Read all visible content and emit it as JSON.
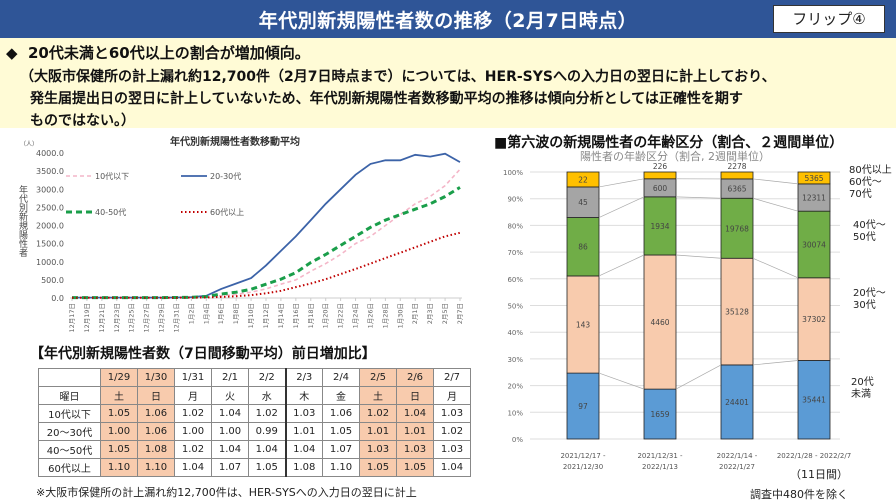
{
  "header": {
    "title": "年代別新規陽性者数の推移（2月7日時点）",
    "flip_label": "フリップ④",
    "bg_color": "#2f5597"
  },
  "note": {
    "bullet": "◆",
    "line1": "20代未満と60代以上の割合が増加傾向。",
    "line2": "（大阪市保健所の計上漏れ約12,700件（2月7日時点まで）については、HER-SYSへの入力日の翌日に計上しており、",
    "line3": "発生届提出日の翌日に計上していないため、年代別新規陽性者数移動平均の推移は傾向分析としては正確性を期す",
    "line4": "ものではない。）"
  },
  "chart_data": [
    {
      "type": "line",
      "title": "年代別新規陽性者数移動平均",
      "ylabel": "年代別新規陽性者",
      "yunit": "（人）",
      "ylim": [
        0,
        4000
      ],
      "yticks": [
        "0.0",
        "500.0",
        "1000.0",
        "1500.0",
        "2000.0",
        "2500.0",
        "3000.0",
        "3500.0",
        "4000.0"
      ],
      "x": [
        "12月17日",
        "12月19日",
        "12月21日",
        "12月23日",
        "12月25日",
        "12月27日",
        "12月29日",
        "12月31日",
        "1月2日",
        "1月4日",
        "1月6日",
        "1月8日",
        "1月10日",
        "1月12日",
        "1月14日",
        "1月16日",
        "1月18日",
        "1月20日",
        "1月22日",
        "1月24日",
        "1月26日",
        "1月28日",
        "1月30日",
        "2月1日",
        "2月3日",
        "2月5日",
        "2月7日"
      ],
      "legend": "top-left",
      "series": [
        {
          "name": "10代以下",
          "color": "#f4b6c8",
          "style": "dashed",
          "values": [
            10,
            10,
            10,
            10,
            10,
            10,
            12,
            15,
            20,
            30,
            60,
            100,
            160,
            250,
            380,
            500,
            740,
            950,
            1200,
            1500,
            1700,
            2000,
            2300,
            2600,
            2800,
            3100,
            3550
          ]
        },
        {
          "name": "20-30代",
          "color": "#3c63a8",
          "style": "solid",
          "values": [
            10,
            10,
            10,
            10,
            10,
            10,
            12,
            15,
            25,
            60,
            250,
            400,
            550,
            900,
            1300,
            1700,
            2150,
            2600,
            3000,
            3400,
            3700,
            3800,
            3800,
            3950,
            3900,
            3980,
            3750
          ]
        },
        {
          "name": "40-50代",
          "color": "#1a9e4a",
          "style": "dash-thick",
          "values": [
            10,
            10,
            10,
            10,
            10,
            10,
            12,
            15,
            20,
            40,
            110,
            160,
            240,
            380,
            520,
            700,
            980,
            1200,
            1450,
            1700,
            1950,
            2150,
            2300,
            2450,
            2600,
            2800,
            3050
          ]
        },
        {
          "name": "60代以上",
          "color": "#c00000",
          "style": "dotted",
          "values": [
            5,
            5,
            5,
            5,
            5,
            5,
            6,
            8,
            10,
            15,
            30,
            50,
            80,
            130,
            200,
            300,
            400,
            520,
            660,
            800,
            950,
            1100,
            1250,
            1400,
            1550,
            1700,
            1800
          ]
        }
      ]
    },
    {
      "type": "bar",
      "stacked": true,
      "percent": true,
      "title": "陽性者の年齢区分（割合, 2週間単位）",
      "ylim": [
        0,
        100
      ],
      "yticks": [
        "0%",
        "10%",
        "20%",
        "30%",
        "40%",
        "50%",
        "60%",
        "70%",
        "80%",
        "90%",
        "100%"
      ],
      "categories": [
        "2021/12/17 - 2021/12/30",
        "2021/12/31 - 2022/1/13",
        "2022/1/14 - 2022/1/27",
        "2022/1/28 - 2022/2/7"
      ],
      "series": [
        {
          "name": "20代未満",
          "color": "#5b9bd5",
          "values": [
            97,
            1659,
            24401,
            35441
          ]
        },
        {
          "name": "20代～30代",
          "color": "#f8cbad",
          "values": [
            143,
            4460,
            35128,
            37302
          ]
        },
        {
          "name": "40代～50代",
          "color": "#70ad47",
          "values": [
            86,
            1934,
            19768,
            30074
          ]
        },
        {
          "name": "60代～70代",
          "color": "#a5a5a5",
          "values": [
            45,
            600,
            6365,
            12311
          ]
        },
        {
          "name": "80代以上",
          "color": "#ffc000",
          "values": [
            22,
            226,
            2278,
            5365
          ]
        }
      ]
    }
  ],
  "left": {
    "line_title": "年代別新規陽性者数移動平均",
    "table_title": "【年代別新規陽性者数（7日間移動平均）前日増加比】",
    "table": {
      "dates": [
        "1/29",
        "1/30",
        "1/31",
        "2/1",
        "2/2",
        "2/3",
        "2/4",
        "2/5",
        "2/6",
        "2/7"
      ],
      "weekday_label": "曜日",
      "weekdays": [
        "土",
        "日",
        "月",
        "火",
        "水",
        "木",
        "金",
        "土",
        "日",
        "月"
      ],
      "highlight_cols": [
        0,
        1,
        7,
        8
      ],
      "highlight_color": "#f8cbad",
      "rows": [
        {
          "label": "10代以下",
          "values": [
            "1.05",
            "1.06",
            "1.02",
            "1.04",
            "1.02",
            "1.03",
            "1.06",
            "1.02",
            "1.04",
            "1.03"
          ]
        },
        {
          "label": "20～30代",
          "values": [
            "1.00",
            "1.06",
            "1.00",
            "1.00",
            "0.99",
            "1.01",
            "1.05",
            "1.01",
            "1.01",
            "1.02"
          ]
        },
        {
          "label": "40～50代",
          "values": [
            "1.05",
            "1.08",
            "1.02",
            "1.04",
            "1.04",
            "1.04",
            "1.07",
            "1.03",
            "1.03",
            "1.03"
          ]
        },
        {
          "label": "60代以上",
          "values": [
            "1.10",
            "1.10",
            "1.04",
            "1.07",
            "1.05",
            "1.08",
            "1.10",
            "1.05",
            "1.05",
            "1.04"
          ]
        }
      ]
    },
    "footnote": "※大阪市保健所の計上漏れ約12,700件は、HER-SYSへの入力日の翌日に計上"
  },
  "right": {
    "title": "■第六波の新規陽性者の年齢区分（割合、２週間単位）",
    "subtitle": "陽性者の年齢区分（割合, 2週間単位）",
    "legend_labels": [
      "80代以上",
      "60代～\n70代",
      "40代～\n50代",
      "20代～\n30代",
      "20代\n未満"
    ],
    "note_days": "（11日間）",
    "note_excluded": "調査中480件を除く"
  }
}
